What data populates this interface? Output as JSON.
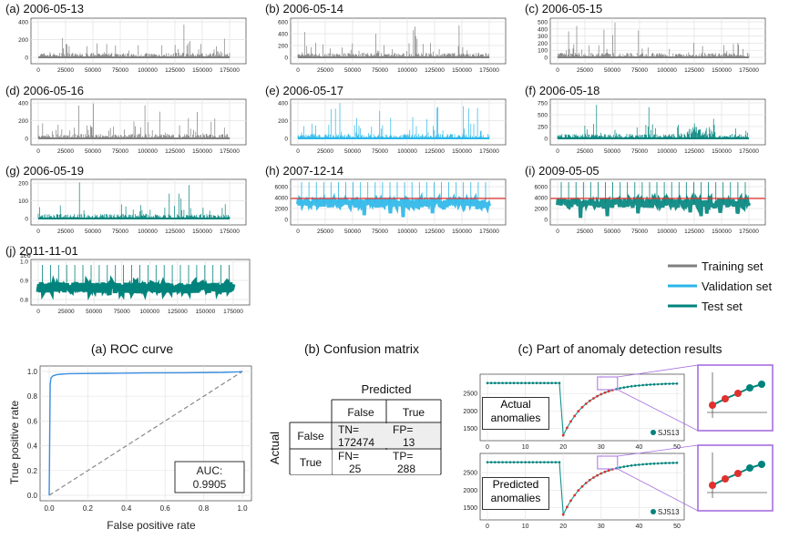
{
  "colors": {
    "training": "#7f7f7f",
    "validation": "#29b6e8",
    "test": "#00837c",
    "roc": "#3b8ee0",
    "threshold": "#e0312e",
    "predicted_dot": "#e0312e",
    "zoom_box": "#a76ee0"
  },
  "panels": [
    {
      "label": "(a) 2006-05-13",
      "yticks": [
        "0",
        "200",
        "400"
      ],
      "set": "training"
    },
    {
      "label": "(b) 2006-05-14",
      "yticks": [
        "0",
        "200",
        "400",
        "600"
      ],
      "set": "training"
    },
    {
      "label": "(c) 2006-05-15",
      "yticks": [
        "0",
        "100",
        "200",
        "300",
        "400",
        "500"
      ],
      "set": "training"
    },
    {
      "label": "(d) 2006-05-16",
      "yticks": [
        "0",
        "200",
        "400"
      ],
      "set": "training"
    },
    {
      "label": "(e) 2006-05-17",
      "yticks": [
        "0",
        "200",
        "400"
      ],
      "set": "validation"
    },
    {
      "label": "(f) 2006-05-18",
      "yticks": [
        "0",
        "250",
        "500",
        "750"
      ],
      "set": "test"
    },
    {
      "label": "(g) 2006-05-19",
      "yticks": [
        "0",
        "100",
        "200"
      ],
      "set": "test"
    },
    {
      "label": "(h) 2007-12-14",
      "yticks": [
        "0",
        "2000",
        "4000",
        "6000"
      ],
      "set": "validation"
    },
    {
      "label": "(i) 2009-05-05",
      "yticks": [
        "0",
        "2000",
        "4000",
        "6000"
      ],
      "set": "test"
    },
    {
      "label": "(j) 2011-11-01",
      "yticks": [
        "0.8",
        "0.9",
        "1.0"
      ],
      "set": "test",
      "multiplier": "1e6"
    }
  ],
  "xticks": [
    "0",
    "25000",
    "50000",
    "75000",
    "100000",
    "125000",
    "150000",
    "175000"
  ],
  "legend": [
    {
      "label": "Training set",
      "set": "training"
    },
    {
      "label": "Validation set",
      "set": "validation"
    },
    {
      "label": "Test set",
      "set": "test"
    }
  ],
  "roc": {
    "title": "(a) ROC curve",
    "xlabel": "False positive rate",
    "ylabel": "True positive rate",
    "ticks": [
      "0.0",
      "0.2",
      "0.4",
      "0.6",
      "0.8",
      "1.0"
    ],
    "auc_label": "AUC:",
    "auc_value": "0.9905"
  },
  "chart_data": {
    "type": "line",
    "title": "(a) ROC curve",
    "xlabel": "False positive rate",
    "ylabel": "True positive rate",
    "xlim": [
      0,
      1
    ],
    "ylim": [
      0,
      1
    ],
    "series": [
      {
        "x": [
          0,
          0.005,
          0.01,
          0.02,
          0.04,
          0.06,
          0.08,
          0.1,
          0.3,
          0.5,
          0.7,
          0.9,
          0.98,
          1.0
        ],
        "values": [
          0,
          0.9,
          0.95,
          0.965,
          0.975,
          0.978,
          0.98,
          0.982,
          0.985,
          0.988,
          0.99,
          0.993,
          0.997,
          1.0
        ]
      },
      {
        "x": [
          0,
          1
        ],
        "values": [
          0,
          1
        ]
      }
    ],
    "annotations": [
      "AUC: 0.9905"
    ]
  },
  "confusion": {
    "title": "(b) Confusion matrix",
    "predicted": "Predicted",
    "actual": "Actual",
    "cols": [
      "False",
      "True"
    ],
    "rows": [
      {
        "label": "False",
        "cells": [
          [
            "TN=",
            "172474"
          ],
          [
            "FP=",
            "13"
          ]
        ]
      },
      {
        "label": "True",
        "cells": [
          [
            "FN=",
            "25"
          ],
          [
            "TP=",
            "288"
          ]
        ]
      }
    ]
  },
  "detection": {
    "title": "(c) Part of anomaly detection results",
    "yticks": [
      "1500",
      "2000",
      "2500"
    ],
    "xticks": [
      "0",
      "10",
      "20",
      "30",
      "40",
      "50"
    ],
    "plots": [
      {
        "label1": "Actual",
        "label2": "anomalies",
        "legend": "SJS13"
      },
      {
        "label1": "Predicted",
        "label2": "anomalies",
        "legend": "SJS13"
      }
    ]
  }
}
